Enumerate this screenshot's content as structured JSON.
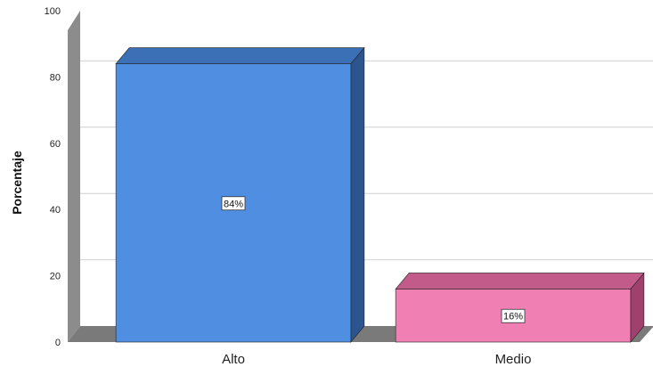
{
  "chart_data": {
    "type": "bar",
    "categories": [
      "Alto",
      "Medio"
    ],
    "values": [
      84,
      16
    ],
    "data_labels": [
      "84%",
      "16%"
    ],
    "title": "",
    "xlabel": "",
    "ylabel": "Porcentaje",
    "ylim": [
      0,
      100
    ],
    "yticks": [
      "0",
      "20",
      "40",
      "60",
      "80",
      "100"
    ],
    "grid": true,
    "legend": "none",
    "style": "3d",
    "colors": {
      "bars": [
        "#4f8ee0",
        "#f07fb4"
      ],
      "bar_sides": [
        "#2c5590",
        "#a0406c"
      ],
      "bar_tops": [
        "#3b6fb6",
        "#c25a8a"
      ],
      "wall": "#8c8c8c",
      "floor": "#7a7a7a",
      "grid": "#d0d0d0"
    }
  }
}
